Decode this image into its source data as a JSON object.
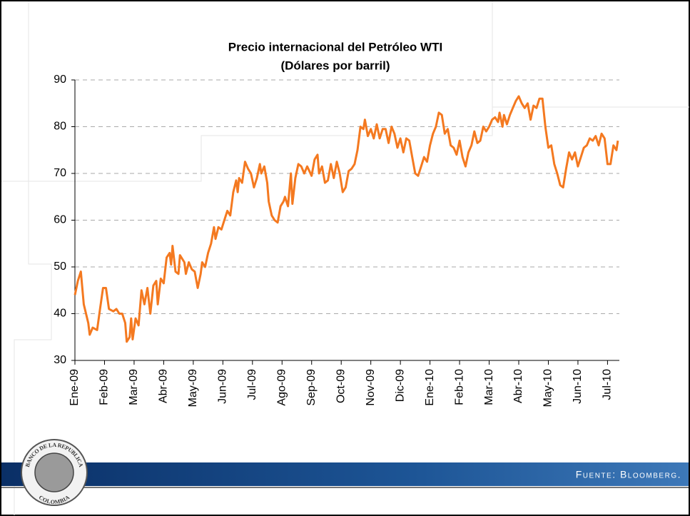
{
  "chart_data": {
    "type": "line",
    "title": "Precio internacional del Petróleo WTI",
    "subtitle": "(Dólares por barril)",
    "color": "#f47920",
    "grid": true,
    "x": [
      0,
      0.1,
      0.2,
      0.3,
      0.45,
      0.5,
      0.6,
      0.75,
      0.85,
      0.95,
      1.05,
      1.15,
      1.3,
      1.4,
      1.5,
      1.6,
      1.7,
      1.75,
      1.85,
      1.9,
      1.95,
      2.05,
      2.15,
      2.25,
      2.35,
      2.45,
      2.55,
      2.65,
      2.75,
      2.8,
      2.9,
      3.0,
      3.1,
      3.2,
      3.25,
      3.3,
      3.4,
      3.5,
      3.55,
      3.7,
      3.75,
      3.85,
      3.95,
      4.05,
      4.15,
      4.25,
      4.3,
      4.4,
      4.5,
      4.6,
      4.7,
      4.75,
      4.85,
      4.95,
      5.05,
      5.15,
      5.25,
      5.35,
      5.45,
      5.5,
      5.55,
      5.65,
      5.75,
      5.85,
      5.95,
      6.05,
      6.15,
      6.25,
      6.3,
      6.4,
      6.5,
      6.55,
      6.65,
      6.75,
      6.85,
      6.95,
      7.05,
      7.1,
      7.2,
      7.3,
      7.35,
      7.45,
      7.55,
      7.65,
      7.75,
      7.85,
      8.0,
      8.1,
      8.2,
      8.25,
      8.35,
      8.45,
      8.55,
      8.65,
      8.75,
      8.85,
      8.95,
      9.05,
      9.15,
      9.25,
      9.35,
      9.45,
      9.55,
      9.65,
      9.75,
      9.8,
      9.9,
      10.0,
      10.1,
      10.2,
      10.3,
      10.4,
      10.5,
      10.6,
      10.7,
      10.8,
      10.9,
      11.0,
      11.1,
      11.2,
      11.3,
      11.4,
      11.5,
      11.6,
      11.7,
      11.8,
      11.9,
      12.0,
      12.1,
      12.2,
      12.3,
      12.4,
      12.5,
      12.6,
      12.7,
      12.8,
      12.9,
      13.0,
      13.1,
      13.2,
      13.3,
      13.4,
      13.5,
      13.6,
      13.7,
      13.8,
      13.9,
      14.0,
      14.1,
      14.2,
      14.3,
      14.35,
      14.45,
      14.5,
      14.6,
      14.7,
      14.8,
      14.9,
      15.0,
      15.1,
      15.2,
      15.3,
      15.4,
      15.5,
      15.6,
      15.7,
      15.8,
      15.9,
      16.0,
      16.1,
      16.2,
      16.3,
      16.4,
      16.5,
      16.6,
      16.7,
      16.8,
      16.9,
      17.0,
      17.1,
      17.2,
      17.3,
      17.4,
      17.5,
      17.6,
      17.7,
      17.8,
      17.9,
      18.0,
      18.1,
      18.2,
      18.3,
      18.35
    ],
    "values": [
      44,
      47,
      49,
      42,
      38,
      35.5,
      37,
      36.5,
      41,
      45.5,
      45.5,
      41,
      40.5,
      41,
      40,
      40,
      38,
      34,
      35,
      39,
      34.5,
      39,
      37.5,
      45,
      42,
      45.5,
      40,
      46,
      47,
      42,
      47.5,
      46.5,
      52,
      53,
      50.5,
      54.5,
      49,
      48.5,
      52.5,
      51,
      48.5,
      51,
      49.5,
      49,
      45.5,
      48.5,
      51,
      50,
      53,
      55,
      58.5,
      56,
      58.5,
      58,
      60,
      62,
      61,
      66,
      68.5,
      66,
      69,
      68,
      72.5,
      71,
      70,
      67,
      69,
      72,
      70,
      71.5,
      68,
      64,
      61,
      60,
      59.5,
      63,
      64,
      65,
      63,
      70,
      63.5,
      69,
      72,
      71.5,
      70,
      71.5,
      69.5,
      73,
      74,
      70,
      71.5,
      68,
      68.5,
      72,
      69,
      72.5,
      70,
      66,
      67,
      70.5,
      71,
      72,
      75,
      80,
      79.5,
      81.5,
      78,
      79.5,
      77.5,
      80.5,
      77.5,
      79.5,
      79.5,
      76.5,
      80,
      78.5,
      75.5,
      77.5,
      74.5,
      77.5,
      77,
      73.5,
      70,
      69.5,
      71.5,
      73.5,
      72.5,
      76,
      78.5,
      80,
      83,
      82.5,
      78.5,
      79.5,
      76,
      75.5,
      74,
      77,
      73.5,
      71.5,
      74.5,
      76,
      79,
      76.5,
      77,
      80,
      79,
      80,
      81.5,
      82,
      81,
      83,
      80,
      82.5,
      80.5,
      82.5,
      84,
      85.5,
      86.5,
      85,
      84,
      85,
      81.5,
      84.5,
      84,
      86,
      86,
      80,
      75.5,
      76,
      72,
      70,
      67.5,
      67,
      71,
      74.5,
      73,
      74.5,
      71.5,
      73.5,
      75.5,
      76,
      77.5,
      77,
      78,
      76,
      78.5,
      77.5,
      72,
      72,
      76,
      75,
      77
    ],
    "xlim": [
      0,
      18.4
    ],
    "xticks": [
      {
        "value": 0,
        "label": "Ene-09"
      },
      {
        "value": 1,
        "label": "Feb-09"
      },
      {
        "value": 2,
        "label": "Mar-09"
      },
      {
        "value": 3,
        "label": "Abr-09"
      },
      {
        "value": 4,
        "label": "May-09"
      },
      {
        "value": 5,
        "label": "Jun-09"
      },
      {
        "value": 6,
        "label": "Jul-09"
      },
      {
        "value": 7,
        "label": "Ago-09"
      },
      {
        "value": 8,
        "label": "Sep-09"
      },
      {
        "value": 9,
        "label": "Oct-09"
      },
      {
        "value": 10,
        "label": "Nov-09"
      },
      {
        "value": 11,
        "label": "Dic-09"
      },
      {
        "value": 12,
        "label": "Ene-10"
      },
      {
        "value": 13,
        "label": "Feb-10"
      },
      {
        "value": 14,
        "label": "Mar-10"
      },
      {
        "value": 15,
        "label": "Abr-10"
      },
      {
        "value": 16,
        "label": "May-10"
      },
      {
        "value": 17,
        "label": "Jun-10"
      },
      {
        "value": 18,
        "label": "Jul-10"
      }
    ],
    "ylim": [
      30,
      90
    ],
    "yticks": [
      30,
      40,
      50,
      60,
      70,
      80,
      90
    ]
  },
  "footer": {
    "source": "Fuente: Bloomberg."
  },
  "logo": {
    "top": "BANCO DE LA REPUBLICA",
    "bottom": "COLOMBIA"
  }
}
